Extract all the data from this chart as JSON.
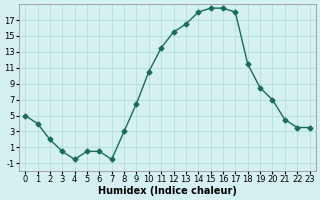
{
  "x": [
    0,
    1,
    2,
    3,
    4,
    5,
    6,
    7,
    8,
    9,
    10,
    11,
    12,
    13,
    14,
    15,
    16,
    17,
    18,
    19,
    20,
    21,
    22,
    23
  ],
  "y": [
    5,
    4,
    2,
    0.5,
    -0.5,
    0.5,
    0.5,
    -0.5,
    3,
    6.5,
    10.5,
    13.5,
    15.5,
    16.5,
    18,
    18.5,
    18.5,
    18,
    11.5,
    8.5,
    7,
    4.5,
    3.5,
    3.5
  ],
  "line_color": "#1a6b5a",
  "marker": "D",
  "marker_size": 2.5,
  "bg_color": "#d4f0f0",
  "grid_color": "#b0d8d8",
  "xlabel": "Humidex (Indice chaleur)",
  "xlim": [
    -0.5,
    23.5
  ],
  "ylim": [
    -2,
    19
  ],
  "yticks": [
    -1,
    1,
    3,
    5,
    7,
    9,
    11,
    13,
    15,
    17
  ],
  "xticks": [
    0,
    1,
    2,
    3,
    4,
    5,
    6,
    7,
    8,
    9,
    10,
    11,
    12,
    13,
    14,
    15,
    16,
    17,
    18,
    19,
    20,
    21,
    22,
    23
  ],
  "label_fontsize": 7,
  "tick_fontsize": 6
}
